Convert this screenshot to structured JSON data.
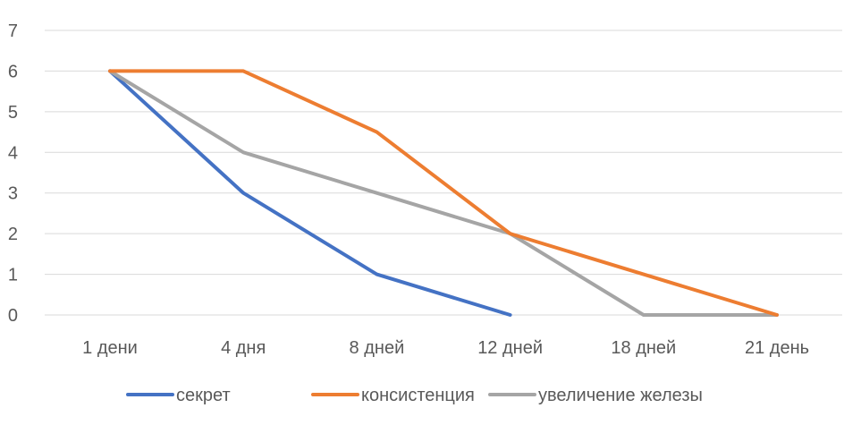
{
  "chart_data": {
    "type": "line",
    "categories": [
      "1 дени",
      "4 дня",
      "8 дней",
      "12 дней",
      "18 дней",
      "21 день"
    ],
    "series": [
      {
        "name": "секрет",
        "color": "#4472c4",
        "values": [
          6,
          3,
          1,
          0,
          null,
          null
        ]
      },
      {
        "name": "консистенция",
        "color": "#ed7d31",
        "values": [
          6,
          6,
          4.5,
          2,
          1,
          0
        ]
      },
      {
        "name": "увеличение железы",
        "color": "#a5a5a5",
        "values": [
          6,
          4,
          3,
          2,
          0,
          0
        ]
      }
    ],
    "ylim": [
      0,
      7
    ],
    "yticks": [
      0,
      1,
      2,
      3,
      4,
      5,
      6,
      7
    ],
    "grid": true,
    "legend_position": "bottom"
  }
}
